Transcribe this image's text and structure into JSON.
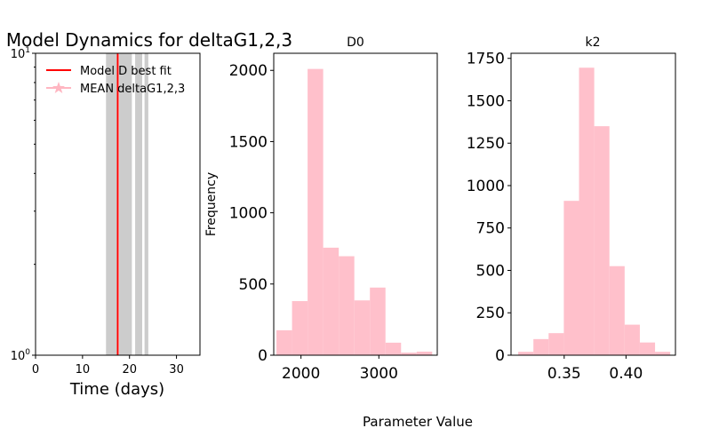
{
  "figure": {
    "common_xlabel": "Parameter Value"
  },
  "chart_data": [
    {
      "type": "line",
      "title": "Model Dynamics for deltaG1,2,3",
      "xlabel": "Time (days)",
      "ylabel": "",
      "xlim": [
        0,
        35
      ],
      "xticks": [
        "0",
        "10",
        "20",
        "30"
      ],
      "yscale": "log",
      "yticks": [
        "10^0",
        "10^1"
      ],
      "ylim": [
        1,
        10
      ],
      "grid": false,
      "legend": {
        "placement": "top-left",
        "entries": [
          {
            "label": " Model D best fit",
            "color": "#ff0000",
            "marker": "none"
          },
          {
            "label": "MEAN deltaG1,2,3",
            "color": "#ffb6c1",
            "marker": "star"
          }
        ]
      },
      "vline": {
        "name": "Model D best fit",
        "x": 17.5,
        "color": "#ff0000"
      },
      "bands": [
        {
          "x0": 15.0,
          "x1": 17.3
        },
        {
          "x0": 17.8,
          "x1": 20.5
        },
        {
          "x0": 21.2,
          "x1": 22.7
        },
        {
          "x0": 23.2,
          "x1": 24.0
        }
      ],
      "band_color": "#cccccc"
    },
    {
      "type": "bar",
      "title": "D0",
      "ylabel": "Frequency",
      "xlim": [
        1650,
        3750
      ],
      "ylim": [
        0,
        2120
      ],
      "xticks": [
        "2000",
        "3000"
      ],
      "yticks": [
        "0",
        "500",
        "1000",
        "1500",
        "2000"
      ],
      "bin_start": 1685,
      "bin_width": 200,
      "values": [
        175,
        380,
        2010,
        755,
        695,
        385,
        475,
        88,
        18,
        25
      ],
      "color": "#ffc0cb"
    },
    {
      "type": "bar",
      "title": "k2",
      "ylabel": "",
      "xlim": [
        0.307,
        0.44
      ],
      "ylim": [
        0,
        1780
      ],
      "xticks": [
        "0.35",
        "0.40"
      ],
      "yticks": [
        "0",
        "250",
        "500",
        "750",
        "1000",
        "1250",
        "1500",
        "1750"
      ],
      "bin_start": 0.3128,
      "bin_width": 0.0123,
      "values": [
        20,
        95,
        130,
        910,
        1695,
        1350,
        525,
        180,
        75,
        20
      ],
      "color": "#ffc0cb"
    }
  ]
}
